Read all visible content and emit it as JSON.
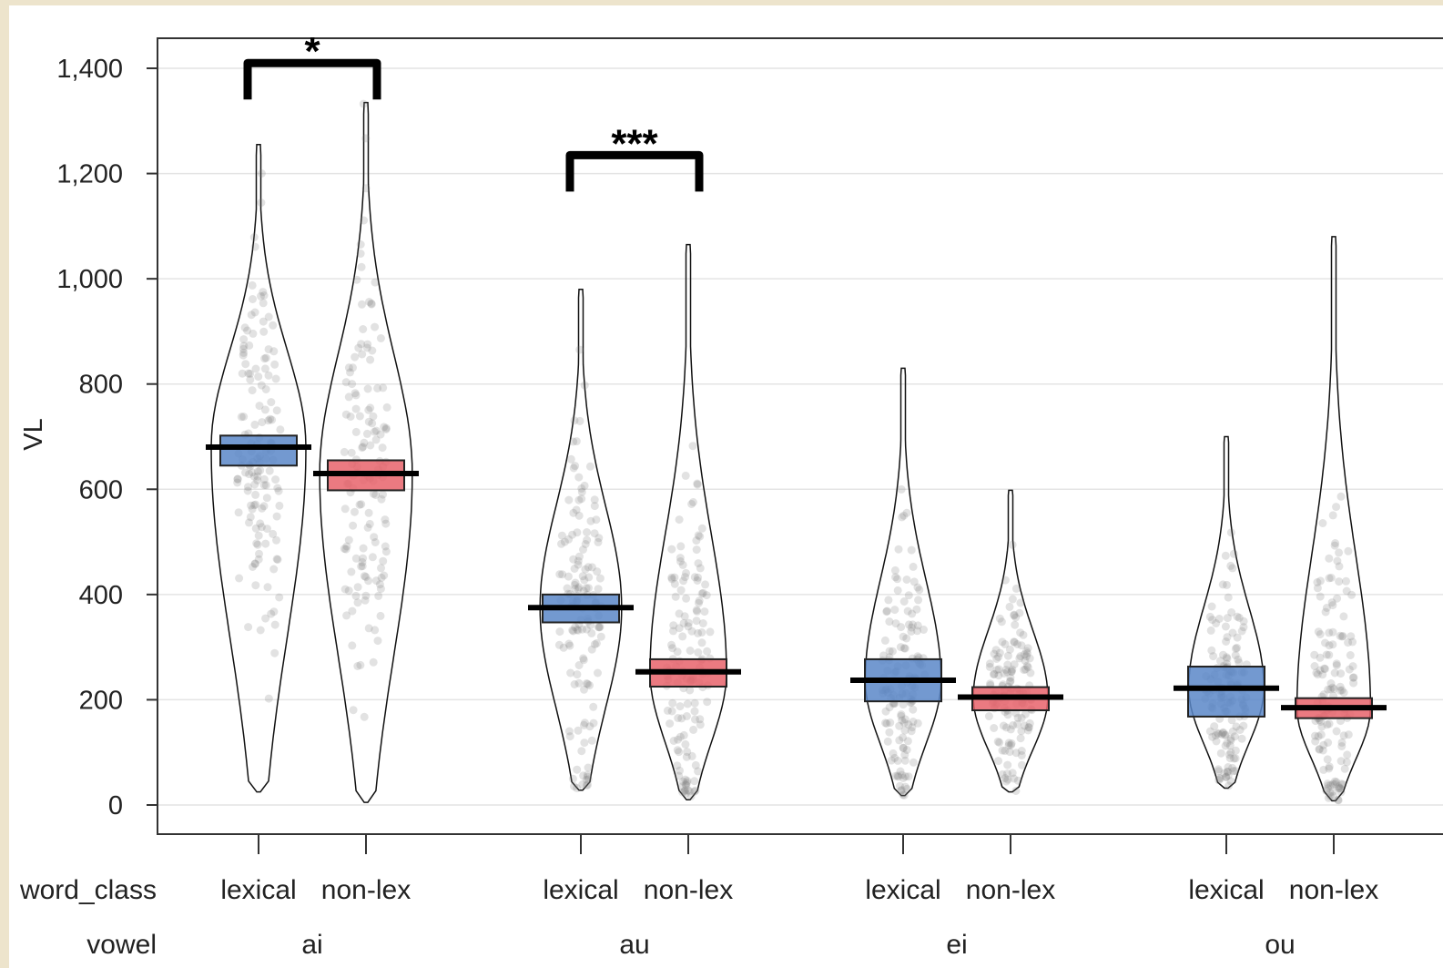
{
  "chart_data": {
    "type": "pirate",
    "title": "",
    "ylabel": "VL",
    "xlabel": "",
    "ylim": [
      -55,
      1460
    ],
    "y_ticks": [
      0,
      200,
      400,
      600,
      800,
      1000,
      1200,
      1400
    ],
    "y_tick_labels": [
      "0",
      "200",
      "400",
      "600",
      "800",
      "1,000",
      "1,200",
      "1,400"
    ],
    "grid": true,
    "factor_labels": {
      "word_class": "word_class",
      "vowel": "vowel"
    },
    "vowels": [
      "ai",
      "au",
      "ei",
      "ou"
    ],
    "word_classes": [
      "lexical",
      "non-lex"
    ],
    "colors": {
      "lexical": "#5b87c8",
      "non-lex": "#e8636b"
    },
    "groups": [
      {
        "vowel": "ai",
        "word_class": "lexical",
        "mean": 680,
        "ci": [
          645,
          702
        ],
        "min": 25,
        "max": 1255
      },
      {
        "vowel": "ai",
        "word_class": "non-lex",
        "mean": 630,
        "ci": [
          598,
          655
        ],
        "min": 5,
        "max": 1335
      },
      {
        "vowel": "au",
        "word_class": "lexical",
        "mean": 375,
        "ci": [
          347,
          400
        ],
        "min": 28,
        "max": 980
      },
      {
        "vowel": "au",
        "word_class": "non-lex",
        "mean": 253,
        "ci": [
          225,
          277
        ],
        "min": 10,
        "max": 1065
      },
      {
        "vowel": "ei",
        "word_class": "lexical",
        "mean": 237,
        "ci": [
          197,
          277
        ],
        "min": 18,
        "max": 830
      },
      {
        "vowel": "ei",
        "word_class": "non-lex",
        "mean": 205,
        "ci": [
          180,
          224
        ],
        "min": 25,
        "max": 598
      },
      {
        "vowel": "ou",
        "word_class": "lexical",
        "mean": 222,
        "ci": [
          168,
          263
        ],
        "min": 32,
        "max": 700
      },
      {
        "vowel": "ou",
        "word_class": "non-lex",
        "mean": 185,
        "ci": [
          165,
          203
        ],
        "min": 8,
        "max": 1080
      }
    ],
    "annotations": [
      {
        "label": "*",
        "vowel": "ai",
        "value": 1410
      },
      {
        "label": "***",
        "vowel": "au",
        "value": 1235
      }
    ]
  }
}
